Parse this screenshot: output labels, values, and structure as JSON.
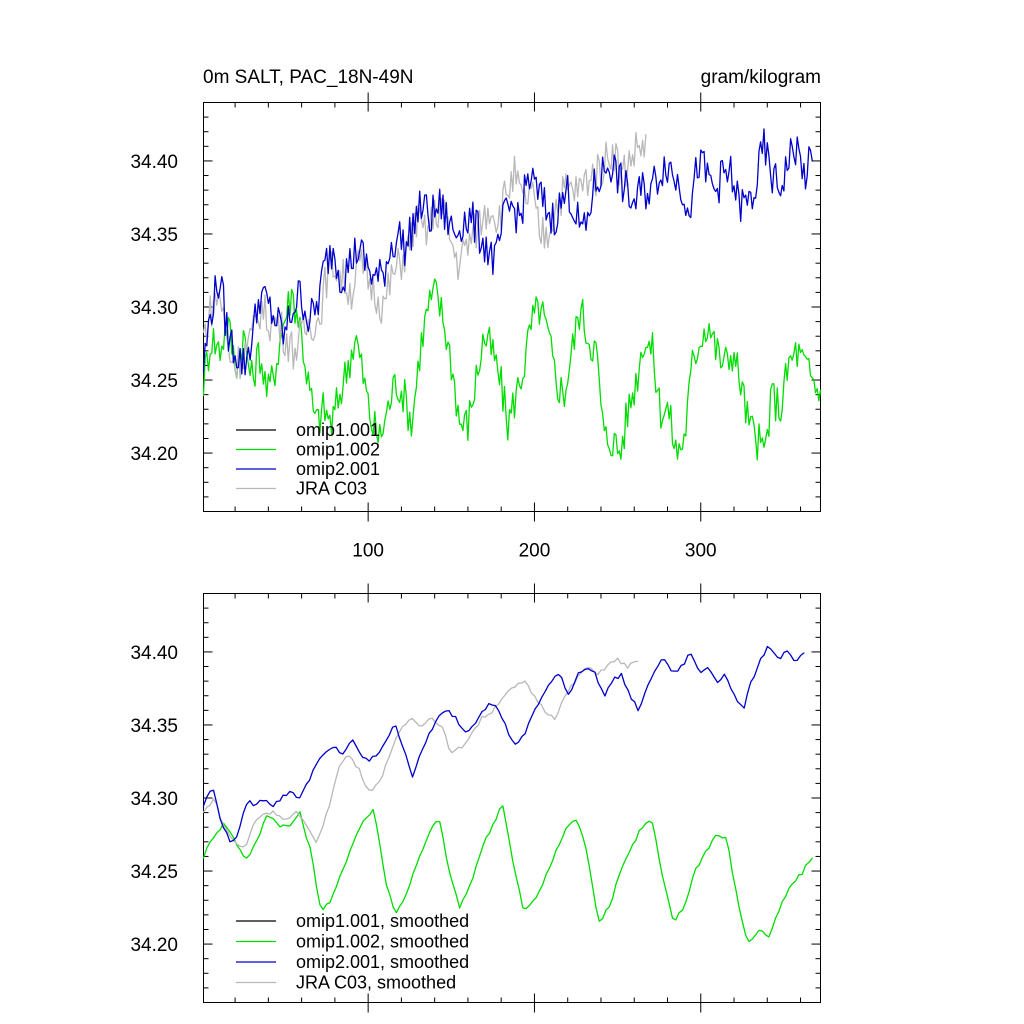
{
  "figure": {
    "title_left": "0m SALT, PAC_18N-49N",
    "title_right": "gram/kilogram"
  },
  "colors": {
    "omip1_001": "#000000",
    "omip1_002": "#00dd00",
    "omip2_001": "#0000cc",
    "jra_c03": "#b8b8b8"
  },
  "chart_data": [
    {
      "type": "line",
      "title": "0m SALT, PAC_18N-49N",
      "units": "gram/kilogram",
      "xlim": [
        1,
        372
      ],
      "ylim": [
        34.16,
        34.44
      ],
      "x_major_ticks": [
        100,
        200,
        300
      ],
      "x_tick_labels": [
        "100",
        "200",
        "300"
      ],
      "y_major_ticks": [
        34.2,
        34.25,
        34.3,
        34.35,
        34.4
      ],
      "y_tick_labels": [
        "34.20",
        "34.25",
        "34.30",
        "34.35",
        "34.40"
      ],
      "grid": false,
      "legend_position": "bottom-left",
      "legend": [
        "omip1.001",
        "omip1.002",
        "omip2.001",
        "JRA C03"
      ],
      "series": [
        {
          "name": "omip1.001",
          "color": "#000000",
          "x_start": 1,
          "x_end": 372,
          "values_approx": [
            34.25,
            34.28,
            34.27,
            34.29,
            34.26,
            34.28,
            34.25,
            34.27,
            34.24,
            34.26,
            34.29,
            34.31,
            34.29,
            34.25,
            34.22,
            34.23,
            34.22,
            34.24,
            34.26,
            34.28,
            34.25,
            34.22,
            34.21,
            34.23,
            34.25,
            34.24,
            34.22,
            34.27,
            34.3,
            34.31,
            34.29,
            34.26,
            34.22,
            34.22,
            34.25,
            34.28,
            34.27,
            34.25,
            34.22,
            34.24,
            34.26,
            34.29,
            34.3,
            34.28,
            34.25,
            34.24,
            34.27,
            34.3,
            34.28,
            34.27,
            34.21,
            34.21,
            34.2,
            34.23,
            34.25,
            34.28,
            34.27,
            34.23,
            34.23,
            34.2,
            34.21,
            34.26,
            34.28,
            34.29,
            34.27,
            34.26,
            34.27,
            34.25,
            34.22,
            34.21,
            34.2,
            34.24,
            34.23,
            34.26,
            34.27,
            34.26,
            34.25,
            34.24
          ]
        },
        {
          "name": "omip1.002",
          "color": "#00dd00",
          "x_start": 1,
          "x_end": 372,
          "values_approx": [
            34.25,
            34.28,
            34.27,
            34.29,
            34.26,
            34.28,
            34.25,
            34.27,
            34.24,
            34.26,
            34.29,
            34.31,
            34.29,
            34.25,
            34.22,
            34.23,
            34.22,
            34.24,
            34.26,
            34.28,
            34.25,
            34.22,
            34.21,
            34.23,
            34.25,
            34.24,
            34.22,
            34.27,
            34.3,
            34.31,
            34.29,
            34.26,
            34.22,
            34.22,
            34.25,
            34.28,
            34.27,
            34.25,
            34.22,
            34.24,
            34.26,
            34.29,
            34.3,
            34.28,
            34.25,
            34.24,
            34.27,
            34.3,
            34.28,
            34.27,
            34.21,
            34.21,
            34.2,
            34.23,
            34.25,
            34.28,
            34.27,
            34.23,
            34.23,
            34.2,
            34.21,
            34.26,
            34.28,
            34.29,
            34.27,
            34.26,
            34.27,
            34.25,
            34.22,
            34.21,
            34.2,
            34.24,
            34.23,
            34.26,
            34.27,
            34.26,
            34.25,
            34.24
          ]
        },
        {
          "name": "omip2.001",
          "color": "#0000cc",
          "x_start": 1,
          "x_end": 367,
          "values_approx": [
            34.26,
            34.3,
            34.32,
            34.28,
            34.27,
            34.26,
            34.28,
            34.31,
            34.3,
            34.29,
            34.28,
            34.3,
            34.31,
            34.29,
            34.3,
            34.33,
            34.34,
            34.32,
            34.33,
            34.34,
            34.33,
            34.32,
            34.32,
            34.34,
            34.35,
            34.34,
            34.36,
            34.37,
            34.36,
            34.37,
            34.36,
            34.35,
            34.36,
            34.36,
            34.35,
            34.34,
            34.33,
            34.36,
            34.37,
            34.36,
            34.39,
            34.38,
            34.37,
            34.36,
            34.37,
            34.38,
            34.36,
            34.35,
            34.38,
            34.39,
            34.4,
            34.39,
            34.38,
            34.37,
            34.38,
            34.38,
            34.39,
            34.4,
            34.39,
            34.38,
            34.37,
            34.4,
            34.39,
            34.38,
            34.39,
            34.39,
            34.37,
            34.37,
            34.38,
            34.41,
            34.39,
            34.38,
            34.4,
            34.41,
            34.39,
            34.4
          ]
        },
        {
          "name": "JRA C03",
          "color": "#b8b8b8",
          "x_start": 1,
          "x_end": 267,
          "values_approx": [
            34.28,
            34.3,
            34.31,
            34.27,
            34.26,
            34.27,
            34.28,
            34.3,
            34.29,
            34.29,
            34.28,
            34.27,
            34.28,
            34.29,
            34.29,
            34.32,
            34.33,
            34.32,
            34.31,
            34.33,
            34.32,
            34.31,
            34.3,
            34.32,
            34.33,
            34.34,
            34.36,
            34.35,
            34.36,
            34.37,
            34.35,
            34.33,
            34.34,
            34.35,
            34.36,
            34.37,
            34.36,
            34.38,
            34.39,
            34.37,
            34.38,
            34.35,
            34.35,
            34.37,
            34.38,
            34.38,
            34.38,
            34.39,
            34.39,
            34.4,
            34.41,
            34.39,
            34.4,
            34.41,
            34.41
          ]
        }
      ]
    },
    {
      "type": "line",
      "title": "",
      "xlim": [
        1,
        372
      ],
      "ylim": [
        34.16,
        34.44
      ],
      "x_major_ticks": [
        100,
        200,
        300
      ],
      "x_tick_labels": [],
      "y_major_ticks": [
        34.2,
        34.25,
        34.3,
        34.35,
        34.4
      ],
      "y_tick_labels": [
        "34.20",
        "34.25",
        "34.30",
        "34.35",
        "34.40"
      ],
      "grid": false,
      "legend_position": "bottom-left",
      "legend": [
        "omip1.001, smoothed",
        "omip1.002, smoothed",
        "omip2.001, smoothed",
        "JRA C03, smoothed"
      ],
      "series": [
        {
          "name": "omip1.001, smoothed",
          "color": "#000000",
          "x_start": 1,
          "x_end": 367,
          "values_approx": [
            34.26,
            34.275,
            34.283,
            34.27,
            34.258,
            34.27,
            34.29,
            34.282,
            34.28,
            34.29,
            34.265,
            34.223,
            34.23,
            34.25,
            34.27,
            34.285,
            34.292,
            34.245,
            34.22,
            34.235,
            34.255,
            34.273,
            34.288,
            34.25,
            34.225,
            34.24,
            34.265,
            34.28,
            34.297,
            34.255,
            34.222,
            34.23,
            34.245,
            34.263,
            34.28,
            34.286,
            34.26,
            34.215,
            34.225,
            34.25,
            34.265,
            34.28,
            34.285,
            34.245,
            34.215,
            34.225,
            34.25,
            34.263,
            34.275,
            34.272,
            34.23,
            34.2,
            34.21,
            34.205,
            34.225,
            34.24,
            34.248,
            34.26
          ]
        },
        {
          "name": "omip1.002, smoothed",
          "color": "#00dd00",
          "x_start": 1,
          "x_end": 367,
          "values_approx": [
            34.26,
            34.275,
            34.283,
            34.27,
            34.258,
            34.27,
            34.29,
            34.282,
            34.28,
            34.29,
            34.265,
            34.223,
            34.23,
            34.25,
            34.27,
            34.285,
            34.292,
            34.245,
            34.22,
            34.235,
            34.255,
            34.273,
            34.288,
            34.25,
            34.225,
            34.24,
            34.265,
            34.28,
            34.297,
            34.255,
            34.222,
            34.23,
            34.245,
            34.263,
            34.28,
            34.286,
            34.26,
            34.215,
            34.225,
            34.25,
            34.265,
            34.28,
            34.285,
            34.245,
            34.215,
            34.225,
            34.25,
            34.263,
            34.275,
            34.272,
            34.23,
            34.2,
            34.21,
            34.205,
            34.225,
            34.24,
            34.248,
            34.26
          ]
        },
        {
          "name": "omip2.001, smoothed",
          "color": "#0000cc",
          "x_start": 1,
          "x_end": 362,
          "values_approx": [
            34.295,
            34.308,
            34.285,
            34.27,
            34.275,
            34.298,
            34.295,
            34.3,
            34.295,
            34.3,
            34.305,
            34.3,
            34.31,
            34.325,
            34.33,
            34.335,
            34.33,
            34.34,
            34.33,
            34.325,
            34.33,
            34.34,
            34.35,
            34.335,
            34.315,
            34.33,
            34.345,
            34.355,
            34.36,
            34.355,
            34.345,
            34.35,
            34.36,
            34.365,
            34.36,
            34.345,
            34.335,
            34.345,
            34.36,
            34.37,
            34.38,
            34.385,
            34.37,
            34.385,
            34.39,
            34.385,
            34.37,
            34.38,
            34.385,
            34.37,
            34.36,
            34.375,
            34.39,
            34.395,
            34.385,
            34.39,
            34.4,
            34.385,
            34.39,
            34.38,
            34.385,
            34.37,
            34.36,
            34.38,
            34.395,
            34.405,
            34.395,
            34.4,
            34.393,
            34.398
          ]
        },
        {
          "name": "JRA C03, smoothed",
          "color": "#b8b8b8",
          "x_start": 1,
          "x_end": 262,
          "values_approx": [
            34.29,
            34.3,
            34.28,
            34.27,
            34.265,
            34.285,
            34.29,
            34.29,
            34.285,
            34.29,
            34.28,
            34.27,
            34.29,
            34.32,
            34.33,
            34.32,
            34.305,
            34.31,
            34.33,
            34.345,
            34.355,
            34.35,
            34.355,
            34.35,
            34.33,
            34.335,
            34.345,
            34.355,
            34.36,
            34.37,
            34.375,
            34.38,
            34.37,
            34.36,
            34.355,
            34.37,
            34.38,
            34.39,
            34.385,
            34.39,
            34.395,
            34.39,
            34.393
          ]
        }
      ]
    }
  ]
}
